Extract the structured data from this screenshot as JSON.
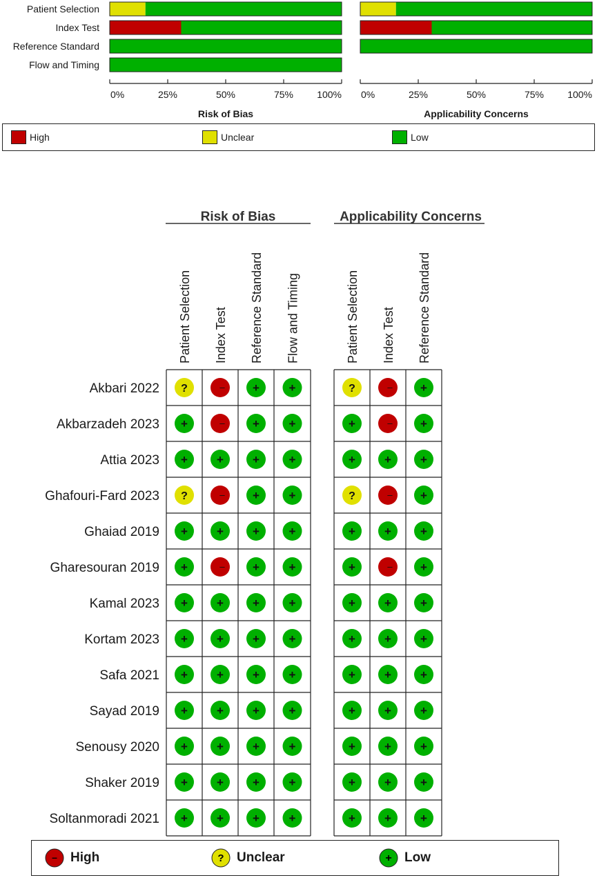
{
  "summary_chart": {
    "panels": [
      {
        "title": "Risk of Bias",
        "domains": [
          "Patient Selection",
          "Index Test",
          "Reference Standard",
          "Flow and Timing"
        ]
      },
      {
        "title": "Applicability Concerns",
        "domains": [
          "Patient Selection",
          "Index Test",
          "Reference Standard"
        ]
      }
    ],
    "row_labels": [
      "Patient Selection",
      "Index Test",
      "Reference Standard",
      "Flow and Timing"
    ],
    "ticks": [
      "0%",
      "25%",
      "50%",
      "75%",
      "100%"
    ],
    "legend": {
      "high": "High",
      "unclear": "Unclear",
      "low": "Low"
    }
  },
  "colors": {
    "high": "#c00000",
    "unclear": "#e0e000",
    "low": "#00b000"
  },
  "chart_data": [
    {
      "type": "bar",
      "orientation": "horizontal-stacked-percent",
      "title": "Risk of Bias",
      "categories": [
        "Patient Selection",
        "Index Test",
        "Reference Standard",
        "Flow and Timing"
      ],
      "series": [
        {
          "name": "High",
          "values": [
            0,
            30.8,
            0,
            0
          ]
        },
        {
          "name": "Unclear",
          "values": [
            15.4,
            0,
            0,
            0
          ]
        },
        {
          "name": "Low",
          "values": [
            84.6,
            69.2,
            100,
            100
          ]
        }
      ],
      "xlim": [
        0,
        100
      ]
    },
    {
      "type": "bar",
      "orientation": "horizontal-stacked-percent",
      "title": "Applicability Concerns",
      "categories": [
        "Patient Selection",
        "Index Test",
        "Reference Standard"
      ],
      "series": [
        {
          "name": "High",
          "values": [
            0,
            30.8,
            0
          ]
        },
        {
          "name": "Unclear",
          "values": [
            15.4,
            0,
            0
          ]
        },
        {
          "name": "Low",
          "values": [
            84.6,
            69.2,
            100
          ]
        }
      ],
      "xlim": [
        0,
        100
      ]
    },
    {
      "type": "table",
      "title": "",
      "group_headers": [
        "Risk of Bias",
        "Applicability Concerns"
      ],
      "columns": {
        "risk_of_bias": [
          "Patient Selection",
          "Index Test",
          "Reference Standard",
          "Flow and Timing"
        ],
        "applicability": [
          "Patient Selection",
          "Index Test",
          "Reference Standard"
        ]
      },
      "studies": [
        {
          "name": "Akbari 2022",
          "rob": [
            "unclear",
            "high",
            "low",
            "low"
          ],
          "app": [
            "unclear",
            "high",
            "low"
          ]
        },
        {
          "name": "Akbarzadeh 2023",
          "rob": [
            "low",
            "high",
            "low",
            "low"
          ],
          "app": [
            "low",
            "high",
            "low"
          ]
        },
        {
          "name": "Attia 2023",
          "rob": [
            "low",
            "low",
            "low",
            "low"
          ],
          "app": [
            "low",
            "low",
            "low"
          ]
        },
        {
          "name": "Ghafouri-Fard 2023",
          "rob": [
            "unclear",
            "high",
            "low",
            "low"
          ],
          "app": [
            "unclear",
            "high",
            "low"
          ]
        },
        {
          "name": "Ghaiad 2019",
          "rob": [
            "low",
            "low",
            "low",
            "low"
          ],
          "app": [
            "low",
            "low",
            "low"
          ]
        },
        {
          "name": "Gharesouran 2019",
          "rob": [
            "low",
            "high",
            "low",
            "low"
          ],
          "app": [
            "low",
            "high",
            "low"
          ]
        },
        {
          "name": "Kamal 2023",
          "rob": [
            "low",
            "low",
            "low",
            "low"
          ],
          "app": [
            "low",
            "low",
            "low"
          ]
        },
        {
          "name": "Kortam 2023",
          "rob": [
            "low",
            "low",
            "low",
            "low"
          ],
          "app": [
            "low",
            "low",
            "low"
          ]
        },
        {
          "name": "Safa 2021",
          "rob": [
            "low",
            "low",
            "low",
            "low"
          ],
          "app": [
            "low",
            "low",
            "low"
          ]
        },
        {
          "name": "Sayad 2019",
          "rob": [
            "low",
            "low",
            "low",
            "low"
          ],
          "app": [
            "low",
            "low",
            "low"
          ]
        },
        {
          "name": "Senousy 2020",
          "rob": [
            "low",
            "low",
            "low",
            "low"
          ],
          "app": [
            "low",
            "low",
            "low"
          ]
        },
        {
          "name": "Shaker 2019",
          "rob": [
            "low",
            "low",
            "low",
            "low"
          ],
          "app": [
            "low",
            "low",
            "low"
          ]
        },
        {
          "name": "Soltanmoradi 2021",
          "rob": [
            "low",
            "low",
            "low",
            "low"
          ],
          "app": [
            "low",
            "low",
            "low"
          ]
        }
      ],
      "symbols": {
        "high": "–",
        "unclear": "?",
        "low": "+"
      },
      "legend": {
        "high": "High",
        "unclear": "Unclear",
        "low": "Low"
      }
    }
  ]
}
